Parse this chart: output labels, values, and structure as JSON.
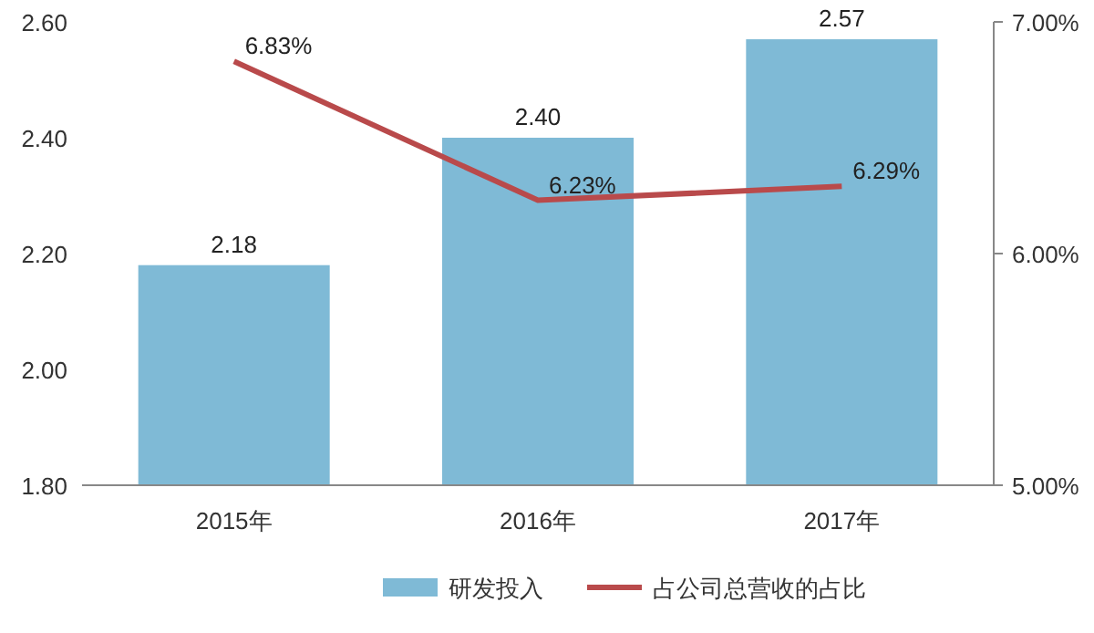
{
  "chart_data": {
    "type": "bar",
    "categories": [
      "2015年",
      "2016年",
      "2017年"
    ],
    "series": [
      {
        "name": "研发投入",
        "color": "#7fbad6",
        "values": [
          2.18,
          2.4,
          2.57
        ],
        "value_labels": [
          "2.18",
          "2.40",
          "2.57"
        ]
      },
      {
        "name": "占公司总营收的占比",
        "type": "line",
        "axis": "y2",
        "color": "#b94a4b",
        "values": [
          6.83,
          6.23,
          6.29
        ],
        "value_labels": [
          "6.83%",
          "6.23%",
          "6.29%"
        ]
      }
    ],
    "ylim": [
      1.8,
      2.6
    ],
    "yticks": [
      {
        "value": 1.8,
        "label": "1.80"
      },
      {
        "value": 2.0,
        "label": "2.00"
      },
      {
        "value": 2.2,
        "label": "2.20"
      },
      {
        "value": 2.4,
        "label": "2.40"
      },
      {
        "value": 2.6,
        "label": "2.60"
      }
    ],
    "y2lim": [
      5,
      7
    ],
    "y2ticks": [
      {
        "value": 5,
        "label": "5.00%"
      },
      {
        "value": 6,
        "label": "6.00%"
      },
      {
        "value": 7,
        "label": "7.00%"
      }
    ],
    "grid": false,
    "legend": "bottom",
    "marker": "none",
    "line_style": "solid"
  }
}
